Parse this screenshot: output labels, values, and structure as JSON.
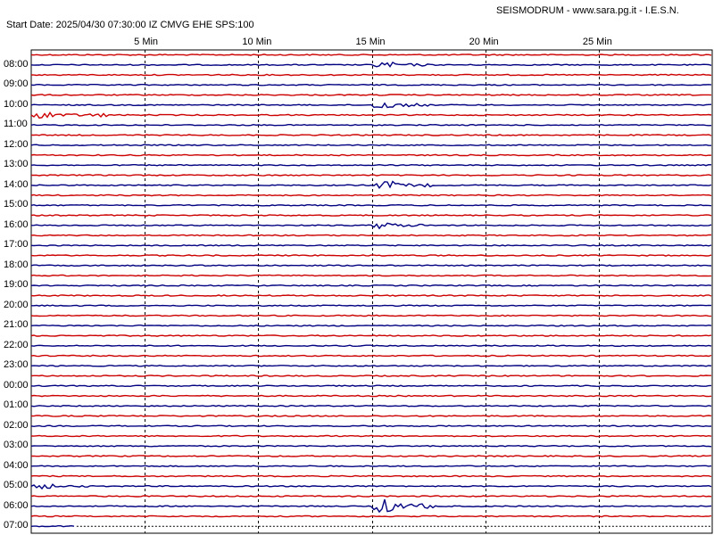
{
  "header": {
    "title": "SEISMODRUM - www.sara.pg.it - I.E.S.N.",
    "start_line": "Start Date: 2025/04/30 07:30:00 IZ CMVG EHE SPS:100"
  },
  "chart_data": {
    "type": "line",
    "x_ticks": [
      {
        "minute": 5,
        "label": "5 Min"
      },
      {
        "minute": 10,
        "label": "10 Min"
      },
      {
        "minute": 15,
        "label": "15 Min"
      },
      {
        "minute": 20,
        "label": "20 Min"
      },
      {
        "minute": 25,
        "label": "25 Min"
      }
    ],
    "xlim": [
      0,
      30
    ],
    "hour_labels": [
      "08:00",
      "09:00",
      "10:00",
      "11:00",
      "12:00",
      "13:00",
      "14:00",
      "15:00",
      "16:00",
      "17:00",
      "18:00",
      "19:00",
      "20:00",
      "21:00",
      "22:00",
      "23:00",
      "00:00",
      "01:00",
      "02:00",
      "03:00",
      "04:00",
      "05:00",
      "06:00",
      "07:00"
    ],
    "trace_colors": [
      "#cc0000",
      "#000080"
    ],
    "lines_per_hour": 2,
    "record_end_minute": 2,
    "bursts": [
      {
        "line": 1,
        "start_min": 15.0,
        "end_min": 17.5,
        "amp": 4
      },
      {
        "line": 5,
        "start_min": 15.0,
        "end_min": 17.5,
        "amp": 5
      },
      {
        "line": 6,
        "start_min": 0.0,
        "end_min": 3.3,
        "amp": 4
      },
      {
        "line": 6,
        "start_min": 3.0,
        "end_min": 3.4,
        "amp": 6
      },
      {
        "line": 13,
        "start_min": 15.0,
        "end_min": 17.8,
        "amp": 5
      },
      {
        "line": 17,
        "start_min": 15.0,
        "end_min": 17.5,
        "amp": 4
      },
      {
        "line": 43,
        "start_min": 0.0,
        "end_min": 2.5,
        "amp": 3
      },
      {
        "line": 45,
        "start_min": 15.0,
        "end_min": 17.8,
        "amp": 8
      }
    ]
  }
}
